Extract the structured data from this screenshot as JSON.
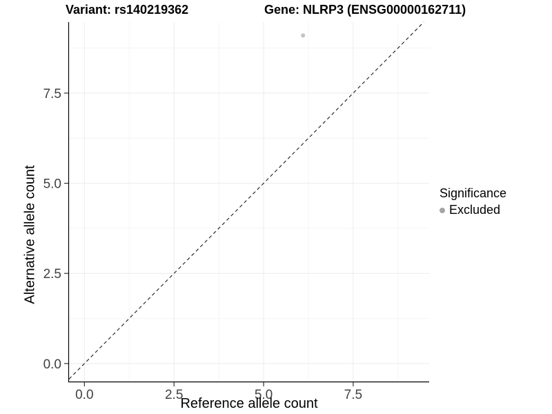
{
  "title": {
    "variant": "Variant: rs140219362",
    "gene": "Gene: NLRP3 (ENSG00000162711)"
  },
  "x_axis": {
    "label": "Reference allele count",
    "ticks": [
      "0.0",
      "2.5",
      "5.0",
      "7.5"
    ]
  },
  "y_axis": {
    "label": "Alternative allele count",
    "ticks": [
      "0.0",
      "2.5",
      "5.0",
      "7.5"
    ]
  },
  "legend": {
    "title": "Significance",
    "items": [
      {
        "label": "Excluded",
        "color": "#a4a4a4",
        "shape": "circle"
      }
    ]
  },
  "colors": {
    "background": "#ffffff",
    "grid_major": "#ebebeb",
    "grid_minor": "#f4f4f4",
    "axis_line": "#000000",
    "tick_mark": "#333333",
    "tick_label": "#404040",
    "identity_line": "#1a1a1a",
    "point": "#c2c2c2"
  },
  "chart_data": {
    "type": "scatter",
    "title": "Variant: rs140219362   Gene: NLRP3 (ENSG00000162711)",
    "xlabel": "Reference allele count",
    "ylabel": "Alternative allele count",
    "xlim": [
      -0.43,
      9.62
    ],
    "ylim": [
      -0.5,
      9.47
    ],
    "x_major_ticks": [
      0.0,
      2.5,
      5.0,
      7.5
    ],
    "y_major_ticks": [
      0.0,
      2.5,
      5.0,
      7.5
    ],
    "x_minor_gridlines": [
      1.25,
      3.75,
      6.25,
      8.75
    ],
    "y_minor_gridlines": [
      1.25,
      3.75,
      6.25,
      8.75
    ],
    "grid": true,
    "legend_position": "right",
    "reference_line": {
      "kind": "identity",
      "slope": 1,
      "intercept": 0,
      "style": "dashed"
    },
    "series": [
      {
        "name": "Excluded",
        "color": "#c2c2c2",
        "marker": "circle",
        "points": [
          {
            "x": 6.1,
            "y": 9.1
          }
        ]
      }
    ]
  }
}
